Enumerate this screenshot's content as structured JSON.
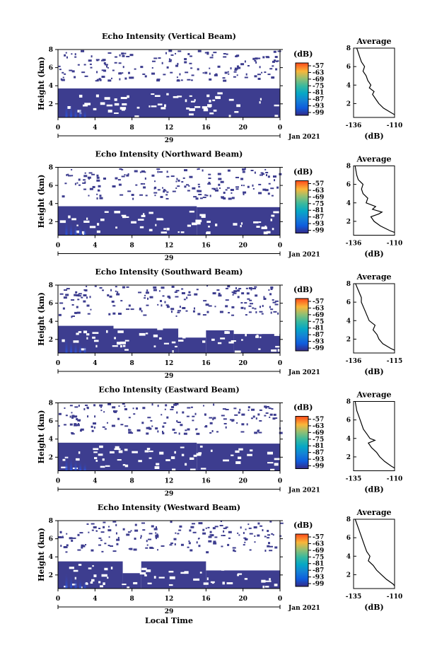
{
  "chart_data": [
    {
      "type": "heatmap",
      "title": "Echo Intensity (Vertical Beam)",
      "xlabel": "",
      "ylabel": "Height (km)",
      "x_ticks": [
        "0",
        "4",
        "8",
        "12",
        "16",
        "20",
        "0"
      ],
      "day_label": "29",
      "date_label": "Jan 2021",
      "y_ticks": [
        "2",
        "4",
        "6",
        "8"
      ],
      "xlim": [
        0,
        24
      ],
      "ylim": [
        0.5,
        8
      ],
      "colorbar": {
        "unit": "(dB)",
        "ticks": [
          "-57",
          "-63",
          "-69",
          "-75",
          "-81",
          "-87",
          "-93",
          "-99"
        ]
      },
      "lower_layer": {
        "segments": [
          [
            0,
            24,
            3.7
          ]
        ]
      },
      "average_profile": {
        "title": "Average",
        "xlabel": "(dB)",
        "x_ticks": [
          "-136",
          "-110"
        ],
        "xlim": [
          -136,
          -110
        ],
        "y": [
          0.8,
          1.0,
          1.5,
          2.0,
          2.5,
          3.0,
          3.3,
          3.7,
          4.0,
          4.5,
          5.0,
          5.5,
          6.0,
          6.5,
          7.0,
          7.5,
          8.0
        ],
        "x": [
          -110,
          -112,
          -117,
          -120,
          -122,
          -124,
          -123,
          -126,
          -125,
          -127,
          -128,
          -130,
          -129,
          -131,
          -132,
          -133,
          -134
        ]
      }
    },
    {
      "type": "heatmap",
      "title": "Echo Intensity (Northward Beam)",
      "xlabel": "",
      "ylabel": "Height (km)",
      "x_ticks": [
        "0",
        "4",
        "8",
        "12",
        "16",
        "20",
        "0"
      ],
      "day_label": "29",
      "date_label": "Jan 2021",
      "y_ticks": [
        "2",
        "4",
        "6",
        "8"
      ],
      "xlim": [
        0,
        24
      ],
      "ylim": [
        0.5,
        8
      ],
      "colorbar": {
        "unit": "(dB)",
        "ticks": [
          "-57",
          "-63",
          "-69",
          "-75",
          "-81",
          "-87",
          "-93",
          "-99"
        ]
      },
      "lower_layer": {
        "segments": [
          [
            0,
            15,
            3.7
          ],
          [
            15,
            24,
            3.6
          ]
        ]
      },
      "average_profile": {
        "title": "Average",
        "xlabel": "(dB)",
        "x_ticks": [
          "-136",
          "-110"
        ],
        "xlim": [
          -136,
          -110
        ],
        "y": [
          0.8,
          1.0,
          1.5,
          2.0,
          2.5,
          2.8,
          3.0,
          3.3,
          3.6,
          4.0,
          4.5,
          5.0,
          5.5,
          6.0,
          6.5,
          7.0,
          8.0
        ],
        "x": [
          -110,
          -113,
          -119,
          -123,
          -125,
          -120,
          -118,
          -124,
          -122,
          -128,
          -127,
          -130,
          -131,
          -130,
          -133,
          -134,
          -135
        ]
      }
    },
    {
      "type": "heatmap",
      "title": "Echo Intensity (Southward Beam)",
      "xlabel": "",
      "ylabel": "Height (km)",
      "x_ticks": [
        "0",
        "4",
        "8",
        "12",
        "16",
        "20",
        "0"
      ],
      "day_label": "29",
      "date_label": "Jan 2021",
      "y_ticks": [
        "2",
        "4",
        "6",
        "8"
      ],
      "xlim": [
        0,
        24
      ],
      "ylim": [
        0.5,
        8
      ],
      "colorbar": {
        "unit": "(dB)",
        "ticks": [
          "-57",
          "-63",
          "-69",
          "-75",
          "-81",
          "-87",
          "-93",
          "-99"
        ]
      },
      "lower_layer": {
        "segments": [
          [
            0,
            6,
            3.5
          ],
          [
            6,
            13,
            3.2
          ],
          [
            13,
            16,
            2.2
          ],
          [
            16,
            19,
            3.0
          ],
          [
            19,
            24,
            2.6
          ]
        ]
      },
      "average_profile": {
        "title": "Average",
        "xlabel": "(dB)",
        "x_ticks": [
          "-136",
          "-115"
        ],
        "xlim": [
          -136,
          -115
        ],
        "y": [
          0.8,
          1.0,
          1.5,
          2.0,
          2.5,
          3.0,
          3.5,
          4.0,
          4.5,
          5.0,
          5.5,
          6.0,
          6.5,
          7.0,
          7.5,
          8.0
        ],
        "x": [
          -115,
          -117,
          -121,
          -123,
          -124,
          -126,
          -125,
          -128,
          -129,
          -130,
          -131,
          -132,
          -132,
          -133,
          -134,
          -135
        ]
      }
    },
    {
      "type": "heatmap",
      "title": "Echo Intensity (Eastward Beam)",
      "xlabel": "",
      "ylabel": "Height (km)",
      "x_ticks": [
        "0",
        "4",
        "8",
        "12",
        "16",
        "20",
        "0"
      ],
      "day_label": "29",
      "date_label": "Jan 2021",
      "y_ticks": [
        "2",
        "4",
        "6",
        "8"
      ],
      "xlim": [
        0,
        24
      ],
      "ylim": [
        0.5,
        8
      ],
      "colorbar": {
        "unit": "(dB)",
        "ticks": [
          "-57",
          "-63",
          "-69",
          "-75",
          "-81",
          "-87",
          "-93",
          "-99"
        ]
      },
      "lower_layer": {
        "segments": [
          [
            0,
            15,
            3.6
          ],
          [
            15,
            24,
            3.5
          ]
        ]
      },
      "average_profile": {
        "title": "Average",
        "xlabel": "(dB)",
        "x_ticks": [
          "-135",
          "-110"
        ],
        "xlim": [
          -135,
          -110
        ],
        "y": [
          0.8,
          1.0,
          1.5,
          2.0,
          2.5,
          3.0,
          3.5,
          3.8,
          4.0,
          4.5,
          5.0,
          5.5,
          6.0,
          6.5,
          7.0,
          8.0
        ],
        "x": [
          -110,
          -112,
          -116,
          -119,
          -121,
          -124,
          -126,
          -122,
          -125,
          -127,
          -129,
          -130,
          -131,
          -132,
          -133,
          -134
        ]
      }
    },
    {
      "type": "heatmap",
      "title": "Echo Intensity (Westward Beam)",
      "xlabel": "Local Time",
      "ylabel": "Height (km)",
      "x_ticks": [
        "0",
        "4",
        "8",
        "12",
        "16",
        "20",
        "0"
      ],
      "day_label": "29",
      "date_label": "Jan 2021",
      "y_ticks": [
        "2",
        "4",
        "6",
        "8"
      ],
      "xlim": [
        0,
        24
      ],
      "ylim": [
        0.5,
        8
      ],
      "colorbar": {
        "unit": "(dB)",
        "ticks": [
          "-57",
          "-63",
          "-69",
          "-75",
          "-81",
          "-87",
          "-93",
          "-99"
        ]
      },
      "lower_layer": {
        "segments": [
          [
            0,
            7,
            3.5
          ],
          [
            7,
            9,
            2.2
          ],
          [
            9,
            16,
            3.5
          ],
          [
            16,
            24,
            2.5
          ]
        ]
      },
      "average_profile": {
        "title": "Average",
        "xlabel": "(dB)",
        "x_ticks": [
          "-135",
          "-110"
        ],
        "xlim": [
          -135,
          -110
        ],
        "y": [
          0.8,
          1.0,
          1.5,
          2.0,
          2.5,
          3.0,
          3.5,
          4.0,
          4.5,
          5.0,
          5.5,
          6.0,
          6.5,
          7.0,
          7.5,
          8.0
        ],
        "x": [
          -110,
          -111,
          -115,
          -118,
          -121,
          -123,
          -126,
          -125,
          -127,
          -128,
          -129,
          -130,
          -131,
          -132,
          -133,
          -134
        ]
      }
    }
  ]
}
